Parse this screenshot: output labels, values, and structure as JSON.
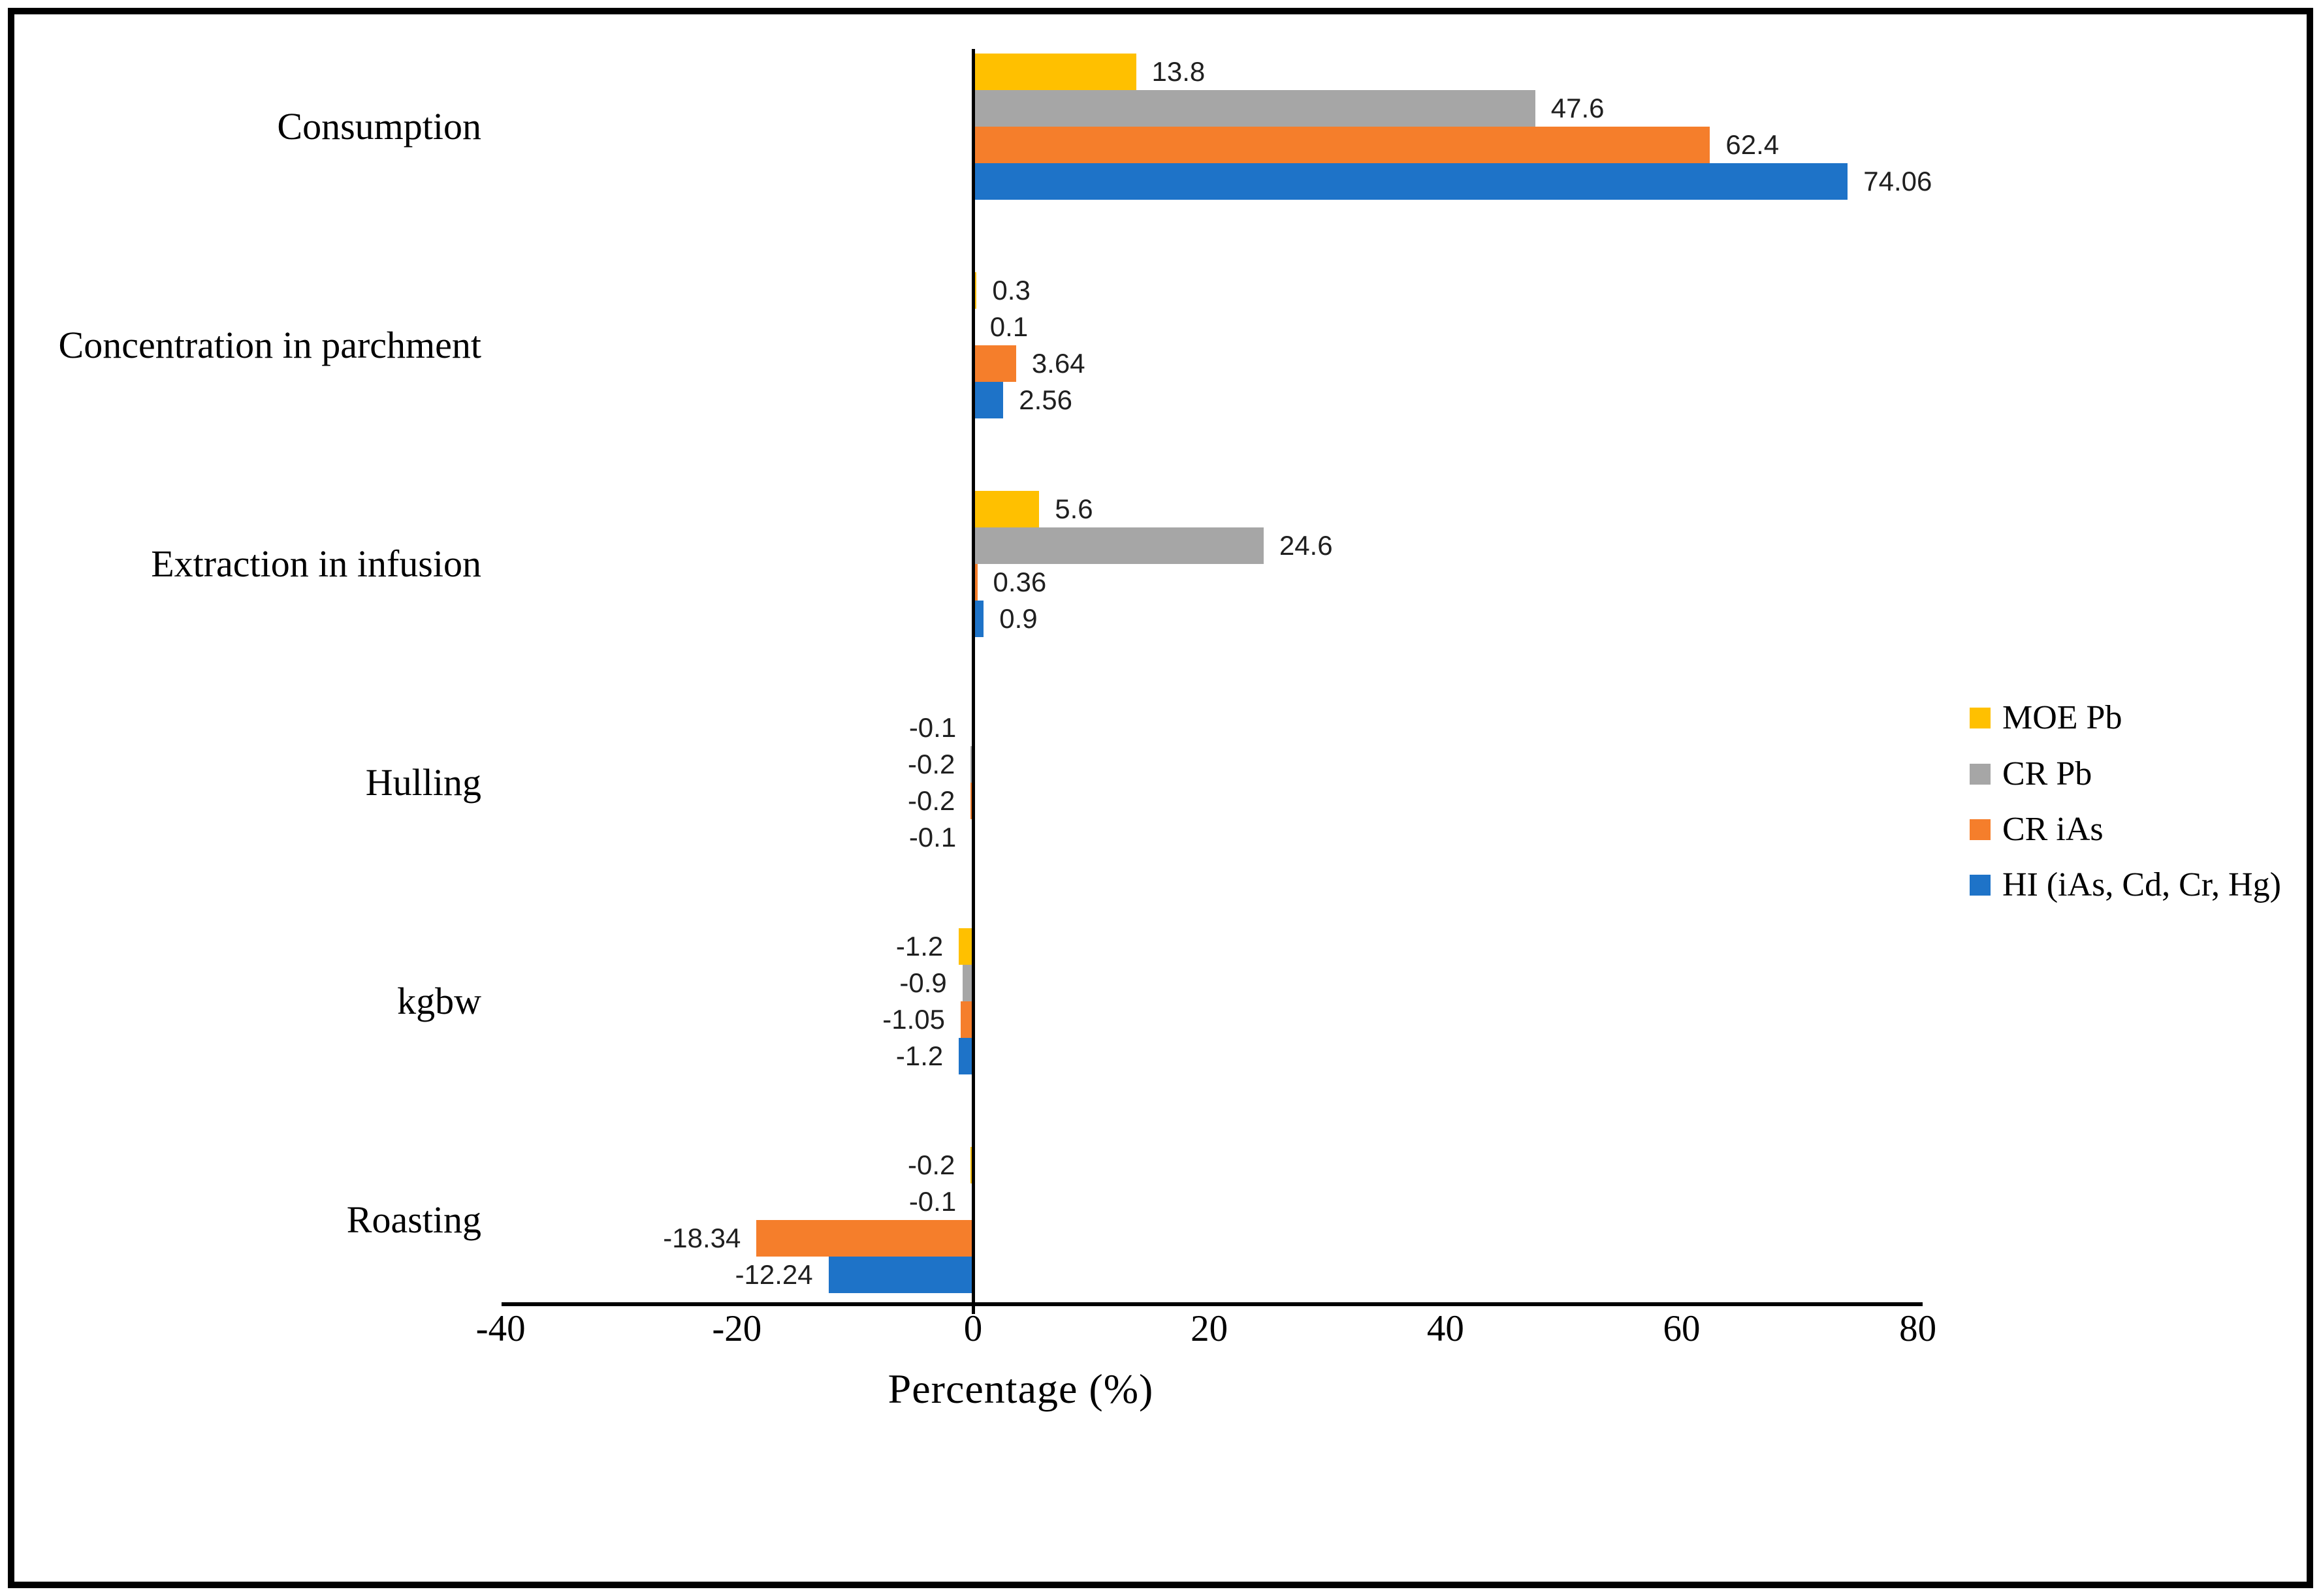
{
  "figure": {
    "background_color": "#ffffff",
    "border_color": "#000000"
  },
  "chart_data": {
    "type": "bar",
    "orientation": "horizontal",
    "title": "",
    "xlabel": "Percentage (%)",
    "ylabel": "",
    "xlim": [
      -40,
      80
    ],
    "x_ticks": [
      -40,
      -20,
      0,
      20,
      40,
      60,
      80
    ],
    "grid": false,
    "value_labels": true,
    "legend_position": "right",
    "categories": [
      "Consumption",
      "Concentration in parchment",
      "Extraction in infusion",
      "Hulling",
      "kgbw",
      "Roasting"
    ],
    "series": [
      {
        "name": "MOE Pb",
        "color": "#FFC000",
        "values": [
          13.8,
          0.3,
          5.6,
          -0.1,
          -1.2,
          -0.2
        ]
      },
      {
        "name": "CR Pb",
        "color": "#A6A6A6",
        "values": [
          47.6,
          0.1,
          24.6,
          -0.2,
          -0.9,
          -0.1
        ]
      },
      {
        "name": "CR iAs",
        "color": "#F57E2B",
        "values": [
          62.4,
          3.64,
          0.36,
          -0.2,
          -1.05,
          -18.34
        ]
      },
      {
        "name": "HI (iAs, Cd, Cr, Hg)",
        "color": "#1E73C8",
        "values": [
          74.06,
          2.56,
          0.9,
          -0.1,
          -1.2,
          -12.24
        ]
      }
    ],
    "value_label_color": "#1f1f1f"
  }
}
